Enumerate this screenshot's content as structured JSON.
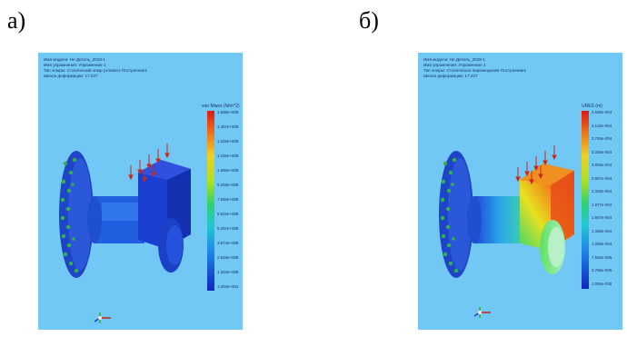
{
  "figure": {
    "panels": [
      {
        "label": "а)",
        "header": [
          "Имя модели: Не Деталь_2019-1",
          "Имя упражнения: Упражнение 1",
          "Тип эпюры: Статический эпюр узлового Построение1",
          "Шкала деформации: 17.227"
        ],
        "legend": {
          "title": "von Mises (N/m^2)",
          "ticks": [
            "1.588e+009",
            "1.457e+009",
            "1.325e+009",
            "1.192e+009",
            "1.060e+009",
            "9.258e+008",
            "7.945e+008",
            "6.622e+008",
            "5.297e+008",
            "3.974e+008",
            "2.649e+008",
            "1.324e+008",
            "1.304e+004"
          ]
        }
      },
      {
        "label": "б)",
        "header": [
          "Имя модели: Не Деталь_2019-1",
          "Имя упражнения: Упражнение 1",
          "Тип эпюры: Статическое перемещение Построение1",
          "Шкала деформации: 17.227"
        ],
        "legend": {
          "title": "URES (m)",
          "ticks": [
            "4.536e-004",
            "4.126e-004",
            "3.793e-004",
            "3.333e-004",
            "3.002e-004",
            "2.667e-004",
            "2.333e-004",
            "1.977e-004",
            "1.667e-004",
            "1.336e-004",
            "1.000e-004",
            "7.562e-005",
            "3.756e-005",
            "1.000e-030"
          ]
        }
      }
    ],
    "colors": {
      "background": "#71c8f5",
      "stress_low": "#1232c8",
      "stress_high": "#e02010",
      "fixture": "#2fb34a",
      "load": "#c8281e"
    }
  }
}
